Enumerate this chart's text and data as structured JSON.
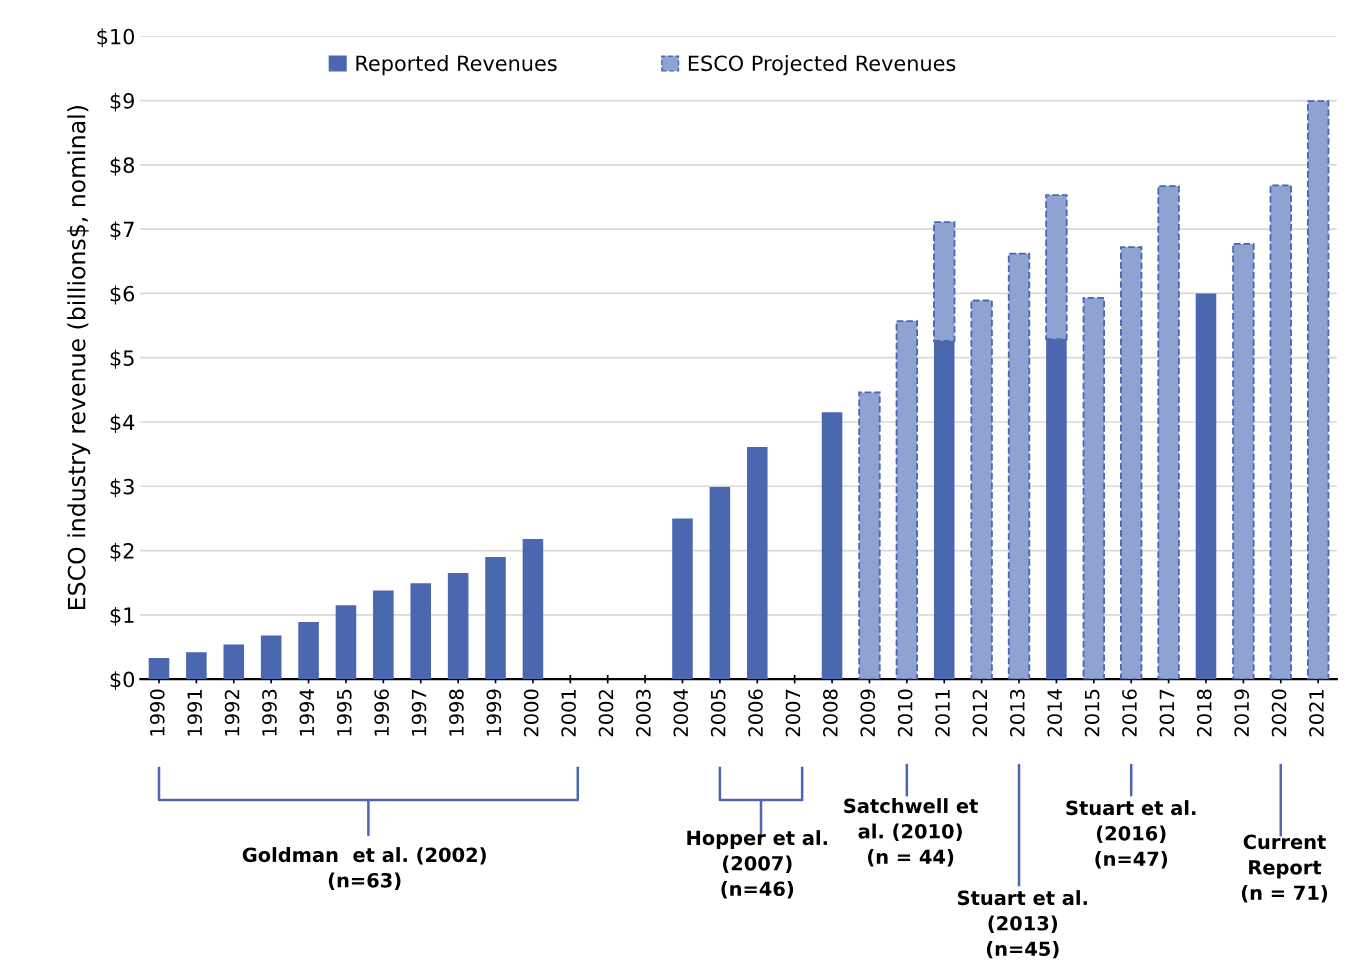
{
  "chart_data": {
    "type": "bar",
    "stacked": true,
    "ylabel": "ESCO industry revenue (billions$, nominal)",
    "categories": [
      "1990",
      "1991",
      "1992",
      "1993",
      "1994",
      "1995",
      "1996",
      "1997",
      "1998",
      "1999",
      "2000",
      "2001",
      "2002",
      "2003",
      "2004",
      "2005",
      "2006",
      "2007",
      "2008",
      "2009",
      "2010",
      "2011",
      "2012",
      "2013",
      "2014",
      "2015",
      "2016",
      "2017",
      "2018",
      "2019",
      "2020",
      "2021"
    ],
    "series": [
      {
        "name": "Reported Revenues",
        "color": "#4a67b0",
        "values": [
          0.33,
          0.42,
          0.54,
          0.68,
          0.89,
          1.15,
          1.38,
          1.49,
          1.65,
          1.9,
          2.18,
          null,
          null,
          null,
          2.5,
          2.99,
          3.61,
          null,
          4.15,
          null,
          null,
          5.26,
          null,
          null,
          5.29,
          null,
          null,
          null,
          6.0,
          null,
          null,
          null
        ]
      },
      {
        "name": "ESCO Projected Revenues",
        "color": "#8fa3d3",
        "line_style": "dashed",
        "values": [
          null,
          null,
          null,
          null,
          null,
          null,
          null,
          null,
          null,
          null,
          null,
          null,
          null,
          null,
          null,
          null,
          null,
          null,
          null,
          4.46,
          5.57,
          1.85,
          5.89,
          6.62,
          2.24,
          5.93,
          6.72,
          7.67,
          null,
          6.77,
          7.68,
          8.99
        ]
      }
    ],
    "ylim": [
      0,
      10
    ],
    "yticks": [
      {
        "value": 0,
        "label": "$0"
      },
      {
        "value": 1,
        "label": "$1"
      },
      {
        "value": 2,
        "label": "$2"
      },
      {
        "value": 3,
        "label": "$3"
      },
      {
        "value": 4,
        "label": "$4"
      },
      {
        "value": 5,
        "label": "$5"
      },
      {
        "value": 6,
        "label": "$6"
      },
      {
        "value": 7,
        "label": "$7"
      },
      {
        "value": 8,
        "label": "$8"
      },
      {
        "value": 9,
        "label": "$9"
      },
      {
        "value": 10,
        "label": "$10"
      }
    ],
    "grid": "y",
    "legend": "top",
    "annotations": [
      "Goldman  et al. (2002)\n(n=63)",
      "Hopper et al.\n(2007)\n(n=46)",
      "Satchwell et\nal. (2010)\n(n = 44)",
      "Stuart et al.\n(2013)\n(n=45)",
      "Stuart et al.\n(2016)\n(n=47)",
      "Current\nReport\n(n = 71)"
    ]
  }
}
